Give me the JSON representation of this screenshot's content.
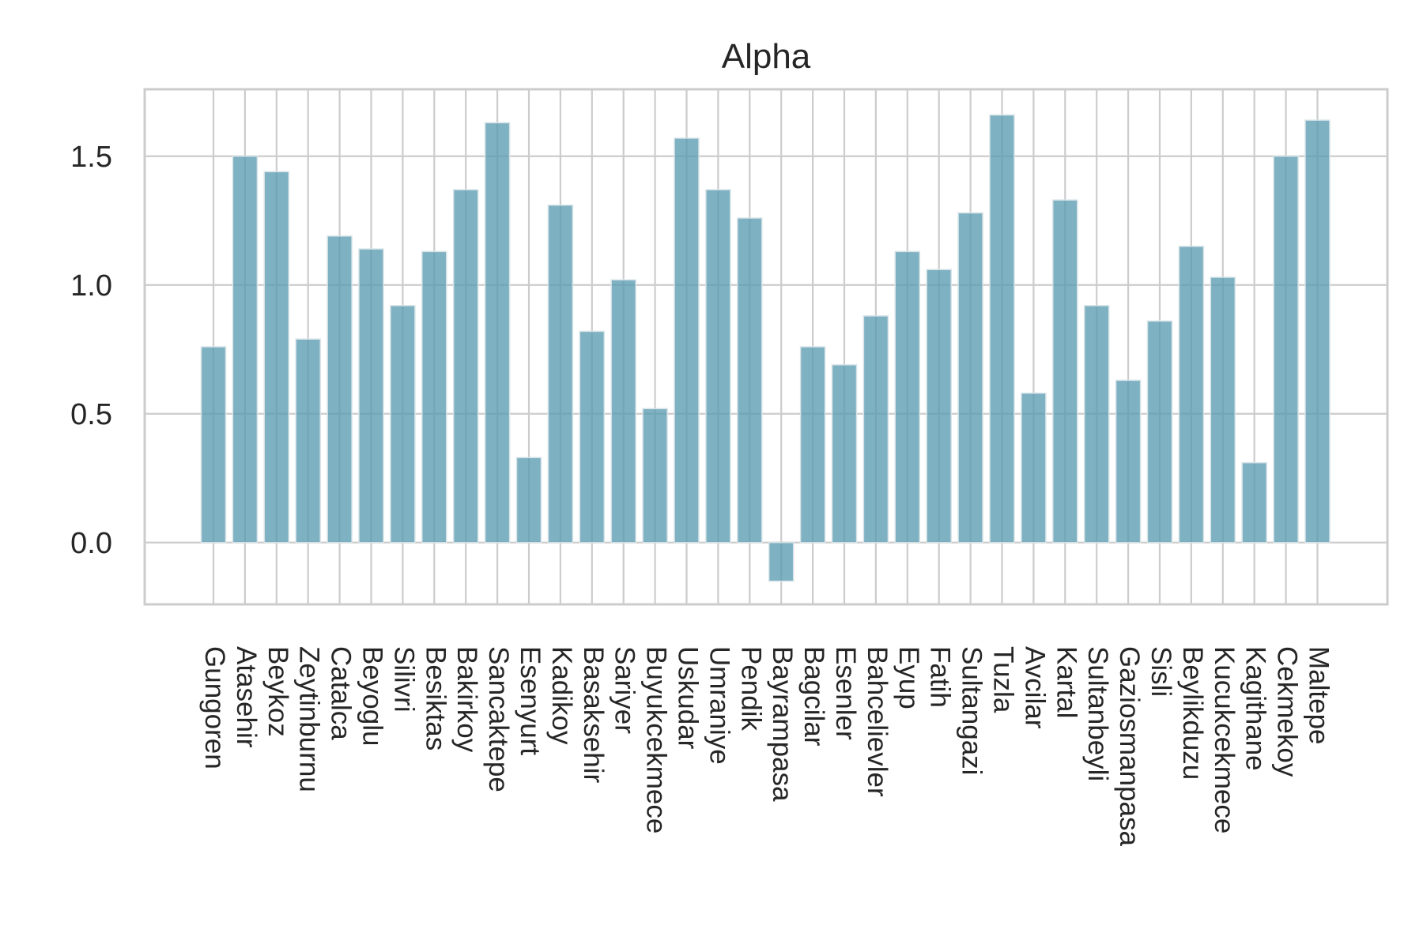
{
  "chart_data": {
    "type": "bar",
    "title": "Alpha",
    "xlabel": "",
    "ylabel": "",
    "ylim": [
      -0.24,
      1.76
    ],
    "yticks": [
      0.0,
      0.5,
      1.0,
      1.5
    ],
    "ytick_labels": [
      "0.0",
      "0.5",
      "1.0",
      "1.5"
    ],
    "grid": true,
    "legend": "none",
    "bar_color": "#5a9bb0",
    "categories": [
      "Gungoren",
      "Atasehir",
      "Beykoz",
      "Zeytinburnu",
      "Catalca",
      "Beyoglu",
      "Silivri",
      "Besiktas",
      "Bakirkoy",
      "Sancaktepe",
      "Esenyurt",
      "Kadikoy",
      "Basaksehir",
      "Sariyer",
      "Buyukcekmece",
      "Uskudar",
      "Umraniye",
      "Pendik",
      "Bayrampasa",
      "Bagcilar",
      "Esenler",
      "Bahcelievler",
      "Eyup",
      "Fatih",
      "Sultangazi",
      "Tuzla",
      "Avcilar",
      "Kartal",
      "Sultanbeyli",
      "Gaziosmanpasa",
      "Sisli",
      "Beylikduzu",
      "Kucukcekmece",
      "Kagithane",
      "Cekmekoy",
      "Maltepe"
    ],
    "values": [
      0.76,
      1.5,
      1.44,
      0.79,
      1.19,
      1.14,
      0.92,
      1.13,
      1.37,
      1.63,
      0.33,
      1.31,
      0.82,
      1.02,
      0.52,
      1.57,
      1.37,
      1.26,
      -0.15,
      0.76,
      0.69,
      0.88,
      1.13,
      1.06,
      1.28,
      1.66,
      0.58,
      1.33,
      0.92,
      0.63,
      0.86,
      1.15,
      1.03,
      0.31,
      1.5,
      1.64
    ]
  }
}
